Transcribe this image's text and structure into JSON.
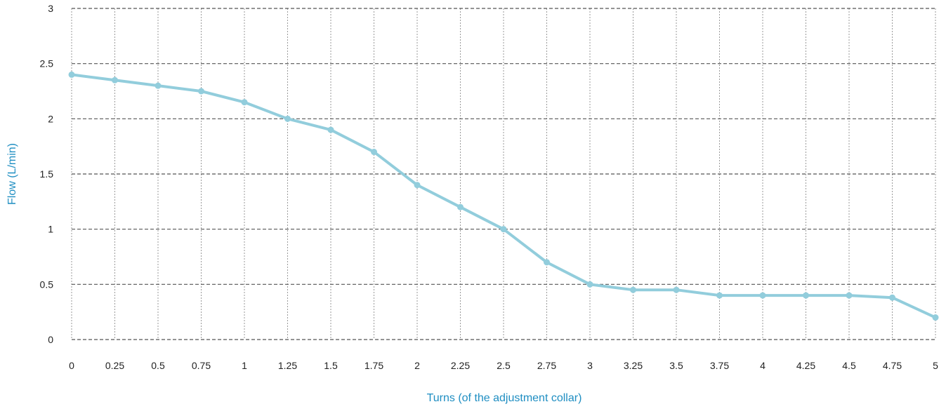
{
  "chart_data": {
    "type": "line",
    "title": "",
    "xlabel": "Turns (of the adjustment collar)",
    "ylabel": "Flow (L/min)",
    "x": [
      0,
      0.25,
      0.5,
      0.75,
      1,
      1.25,
      1.5,
      1.75,
      2,
      2.25,
      2.5,
      2.75,
      3,
      3.25,
      3.5,
      3.75,
      4,
      4.25,
      4.5,
      4.75,
      5
    ],
    "x_tick_labels": [
      "0",
      "0.25",
      "0.5",
      "0.75",
      "1",
      "1.25",
      "1.5",
      "1.75",
      "2",
      "2.25",
      "2.5",
      "2.75",
      "3",
      "3.25",
      "3.5",
      "3.75",
      "4",
      "4.25",
      "4.5",
      "4.75",
      "5"
    ],
    "y_ticks": [
      0,
      0.5,
      1,
      1.5,
      2,
      2.5,
      3
    ],
    "y_tick_labels": [
      "0",
      "0.5",
      "1",
      "1.5",
      "2",
      "2.5",
      "3"
    ],
    "xlim": [
      0,
      5
    ],
    "ylim": [
      0,
      3
    ],
    "series": [
      {
        "values": [
          2.4,
          2.35,
          2.3,
          2.25,
          2.15,
          2.0,
          1.9,
          1.7,
          1.4,
          1.2,
          1.0,
          0.7,
          0.5,
          0.45,
          0.45,
          0.4,
          0.4,
          0.4,
          0.4,
          0.38,
          0.2
        ]
      }
    ],
    "grid": true,
    "legend": "none",
    "colors": {
      "series": "#92cddc",
      "axis_title": "#1f8ec2",
      "grid_horizontal": "#555555",
      "grid_vertical": "#9a9a9a"
    }
  }
}
